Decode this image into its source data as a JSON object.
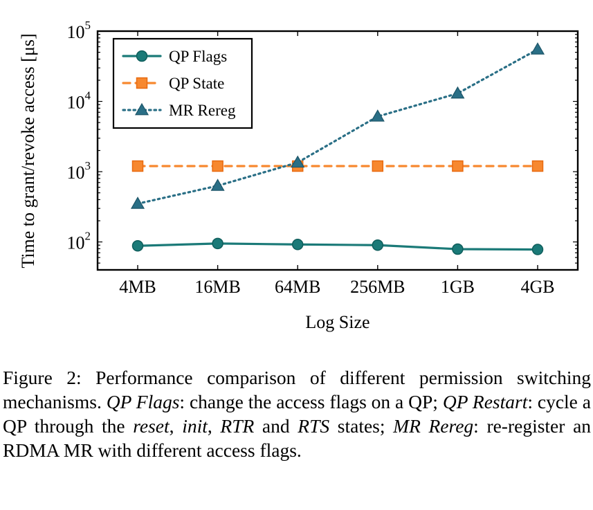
{
  "chart_data": {
    "type": "line",
    "categories": [
      "4MB",
      "16MB",
      "64MB",
      "256MB",
      "1GB",
      "4GB"
    ],
    "series": [
      {
        "name": "QP Flags",
        "values": [
          88,
          95,
          92,
          90,
          79,
          78
        ],
        "color": "#1b7a78",
        "style": "solid",
        "marker": "circle"
      },
      {
        "name": "QP State",
        "values": [
          1200,
          1200,
          1200,
          1200,
          1200,
          1200
        ],
        "color": "#f7882f",
        "style": "dashed",
        "marker": "square"
      },
      {
        "name": "MR Rereg",
        "values": [
          350,
          630,
          1350,
          6100,
          13000,
          55000
        ],
        "color": "#2a6f86",
        "style": "dotted",
        "marker": "triangle"
      }
    ],
    "xlabel": "Log Size",
    "ylabel": "Time to grant/revoke access [μs]",
    "yscale": "log",
    "ylim": [
      40,
      100000
    ],
    "yticks": [
      {
        "base": "10",
        "exp": "2",
        "value": 100
      },
      {
        "base": "10",
        "exp": "3",
        "value": 1000
      },
      {
        "base": "10",
        "exp": "4",
        "value": 10000
      },
      {
        "base": "10",
        "exp": "5",
        "value": 100000
      }
    ],
    "grid": false,
    "legend_position": "top-left"
  },
  "caption": {
    "label": "Figure 2: ",
    "parts": [
      {
        "text": "Performance comparison of different permission switching mechanisms. ",
        "italic": false
      },
      {
        "text": "QP Flags",
        "italic": true
      },
      {
        "text": ": change the access flags on a QP; ",
        "italic": false
      },
      {
        "text": "QP Restart",
        "italic": true
      },
      {
        "text": ": cycle a QP through the ",
        "italic": false
      },
      {
        "text": "reset",
        "italic": true
      },
      {
        "text": ", ",
        "italic": false
      },
      {
        "text": "init",
        "italic": true
      },
      {
        "text": ", ",
        "italic": false
      },
      {
        "text": "RTR",
        "italic": true
      },
      {
        "text": " and ",
        "italic": false
      },
      {
        "text": "RTS",
        "italic": true
      },
      {
        "text": " states; ",
        "italic": false
      },
      {
        "text": "MR Rereg",
        "italic": true
      },
      {
        "text": ": re-register an RDMA MR with different access flags.",
        "italic": false
      }
    ]
  }
}
